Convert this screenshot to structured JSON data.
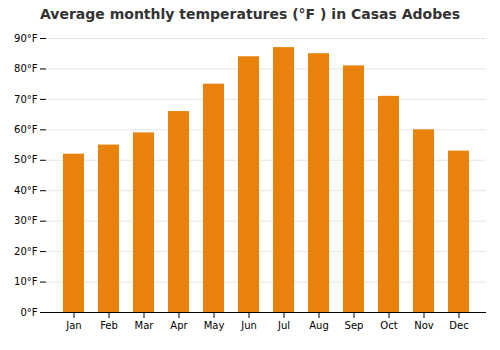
{
  "chart_data": {
    "type": "bar",
    "title": "Average monthly temperatures (°F ) in Casas Adobes",
    "categories": [
      "Jan",
      "Feb",
      "Mar",
      "Apr",
      "May",
      "Jun",
      "Jul",
      "Aug",
      "Sep",
      "Oct",
      "Nov",
      "Dec"
    ],
    "values": [
      52,
      55,
      59,
      66,
      75,
      84,
      87,
      85,
      81,
      71,
      60,
      53
    ],
    "color": "#E8820A",
    "ylim": [
      0,
      90
    ],
    "yticks": [
      {
        "value": 0,
        "label": "0°F"
      },
      {
        "value": 10,
        "label": "10°F"
      },
      {
        "value": 20,
        "label": "20°F"
      },
      {
        "value": 30,
        "label": "30°F"
      },
      {
        "value": 40,
        "label": "40°F"
      },
      {
        "value": 50,
        "label": "50°F"
      },
      {
        "value": 60,
        "label": "60°F"
      },
      {
        "value": 70,
        "label": "70°F"
      },
      {
        "value": 80,
        "label": "80°F"
      },
      {
        "value": 90,
        "label": "90°F"
      }
    ],
    "grid": true
  }
}
